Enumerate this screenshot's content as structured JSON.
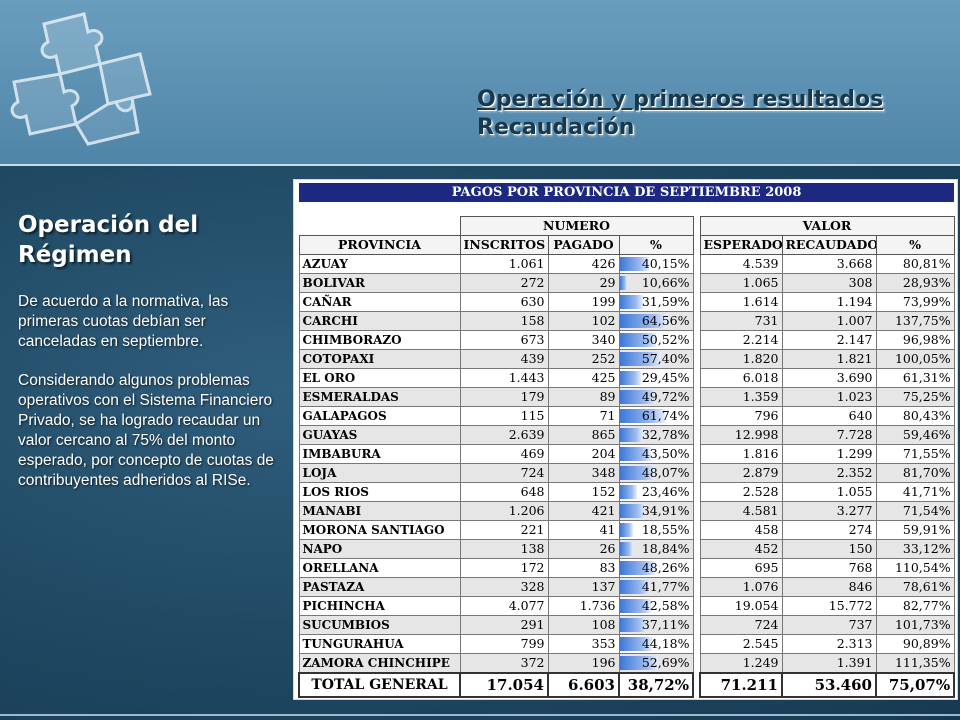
{
  "header": {
    "line1": "Operación y primeros resultados",
    "line2": "Recaudación"
  },
  "sidebar": {
    "title_line1": "Operación del",
    "title_line2": "Régimen",
    "paragraph1": "De acuerdo a la normativa, las primeras cuotas debían ser canceladas en septiembre.",
    "paragraph2": "Considerando algunos problemas operativos con el Sistema Financiero Privado, se ha logrado recaudar un valor cercano al 75% del monto esperado, por concepto de cuotas de contribuyentes adheridos al RISe."
  },
  "logo": {
    "icon": "puzzle-pieces-icon"
  },
  "table": {
    "title": "PAGOS POR PROVINCIA DE SEPTIEMBRE 2008",
    "group_numero": "NUMERO",
    "group_valor": "VALOR",
    "headers": [
      "PROVINCIA",
      "INSCRITOS",
      "PAGADO",
      "%",
      "ESPERADO",
      "RECAUDADO",
      "%"
    ],
    "bar_color": "#3c78d8",
    "title_color": "#1d2980",
    "rows": [
      {
        "prov": "AZUAY",
        "insc": "1.061",
        "pag": "426",
        "pct": "40,15%",
        "pct_value": 40.15,
        "esp": "4.539",
        "rec": "3.668",
        "pct2": "80,81%"
      },
      {
        "prov": "BOLIVAR",
        "insc": "272",
        "pag": "29",
        "pct": "10,66%",
        "pct_value": 10.66,
        "esp": "1.065",
        "rec": "308",
        "pct2": "28,93%"
      },
      {
        "prov": "CAÑAR",
        "insc": "630",
        "pag": "199",
        "pct": "31,59%",
        "pct_value": 31.59,
        "esp": "1.614",
        "rec": "1.194",
        "pct2": "73,99%"
      },
      {
        "prov": "CARCHI",
        "insc": "158",
        "pag": "102",
        "pct": "64,56%",
        "pct_value": 64.56,
        "esp": "731",
        "rec": "1.007",
        "pct2": "137,75%"
      },
      {
        "prov": "CHIMBORAZO",
        "insc": "673",
        "pag": "340",
        "pct": "50,52%",
        "pct_value": 50.52,
        "esp": "2.214",
        "rec": "2.147",
        "pct2": "96,98%"
      },
      {
        "prov": "COTOPAXI",
        "insc": "439",
        "pag": "252",
        "pct": "57,40%",
        "pct_value": 57.4,
        "esp": "1.820",
        "rec": "1.821",
        "pct2": "100,05%"
      },
      {
        "prov": "EL ORO",
        "insc": "1.443",
        "pag": "425",
        "pct": "29,45%",
        "pct_value": 29.45,
        "esp": "6.018",
        "rec": "3.690",
        "pct2": "61,31%"
      },
      {
        "prov": "ESMERALDAS",
        "insc": "179",
        "pag": "89",
        "pct": "49,72%",
        "pct_value": 49.72,
        "esp": "1.359",
        "rec": "1.023",
        "pct2": "75,25%"
      },
      {
        "prov": "GALAPAGOS",
        "insc": "115",
        "pag": "71",
        "pct": "61,74%",
        "pct_value": 61.74,
        "esp": "796",
        "rec": "640",
        "pct2": "80,43%"
      },
      {
        "prov": "GUAYAS",
        "insc": "2.639",
        "pag": "865",
        "pct": "32,78%",
        "pct_value": 32.78,
        "esp": "12.998",
        "rec": "7.728",
        "pct2": "59,46%"
      },
      {
        "prov": "IMBABURA",
        "insc": "469",
        "pag": "204",
        "pct": "43,50%",
        "pct_value": 43.5,
        "esp": "1.816",
        "rec": "1.299",
        "pct2": "71,55%"
      },
      {
        "prov": "LOJA",
        "insc": "724",
        "pag": "348",
        "pct": "48,07%",
        "pct_value": 48.07,
        "esp": "2.879",
        "rec": "2.352",
        "pct2": "81,70%"
      },
      {
        "prov": "LOS RIOS",
        "insc": "648",
        "pag": "152",
        "pct": "23,46%",
        "pct_value": 23.46,
        "esp": "2.528",
        "rec": "1.055",
        "pct2": "41,71%"
      },
      {
        "prov": "MANABI",
        "insc": "1.206",
        "pag": "421",
        "pct": "34,91%",
        "pct_value": 34.91,
        "esp": "4.581",
        "rec": "3.277",
        "pct2": "71,54%"
      },
      {
        "prov": "MORONA SANTIAGO",
        "insc": "221",
        "pag": "41",
        "pct": "18,55%",
        "pct_value": 18.55,
        "esp": "458",
        "rec": "274",
        "pct2": "59,91%"
      },
      {
        "prov": "NAPO",
        "insc": "138",
        "pag": "26",
        "pct": "18,84%",
        "pct_value": 18.84,
        "esp": "452",
        "rec": "150",
        "pct2": "33,12%"
      },
      {
        "prov": "ORELLANA",
        "insc": "172",
        "pag": "83",
        "pct": "48,26%",
        "pct_value": 48.26,
        "esp": "695",
        "rec": "768",
        "pct2": "110,54%"
      },
      {
        "prov": "PASTAZA",
        "insc": "328",
        "pag": "137",
        "pct": "41,77%",
        "pct_value": 41.77,
        "esp": "1.076",
        "rec": "846",
        "pct2": "78,61%"
      },
      {
        "prov": "PICHINCHA",
        "insc": "4.077",
        "pag": "1.736",
        "pct": "42,58%",
        "pct_value": 42.58,
        "esp": "19.054",
        "rec": "15.772",
        "pct2": "82,77%"
      },
      {
        "prov": "SUCUMBIOS",
        "insc": "291",
        "pag": "108",
        "pct": "37,11%",
        "pct_value": 37.11,
        "esp": "724",
        "rec": "737",
        "pct2": "101,73%"
      },
      {
        "prov": "TUNGURAHUA",
        "insc": "799",
        "pag": "353",
        "pct": "44,18%",
        "pct_value": 44.18,
        "esp": "2.545",
        "rec": "2.313",
        "pct2": "90,89%"
      },
      {
        "prov": "ZAMORA CHINCHIPE",
        "insc": "372",
        "pag": "196",
        "pct": "52,69%",
        "pct_value": 52.69,
        "esp": "1.249",
        "rec": "1.391",
        "pct2": "111,35%"
      }
    ],
    "total": {
      "prov": "TOTAL GENERAL",
      "insc": "17.054",
      "pag": "6.603",
      "pct": "38,72%",
      "esp": "71.211",
      "rec": "53.460",
      "pct2": "75,07%"
    }
  }
}
